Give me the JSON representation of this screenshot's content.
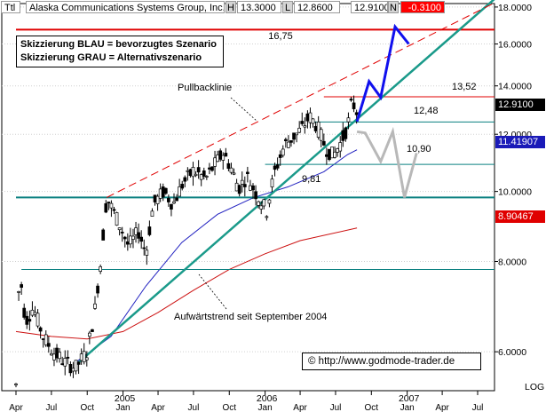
{
  "header": {
    "prefix": "Ttl",
    "title": "Alaska Communications Systems Group, Inc.",
    "high_label": "H",
    "high_value": "13.3000",
    "low_label": "L",
    "low_value": "12.8600",
    "close_value": "12.9100",
    "close_label": "N",
    "change_value": "-0.3100"
  },
  "legend": {
    "line1": "Skizzierung BLAU = bevorzugtes Szenario",
    "line2": "Skizzierung GRAU = Alternativszenario"
  },
  "annotations": {
    "level_top": "16,75",
    "level_1352": "13,52",
    "level_1248": "12,48",
    "level_1090": "10,90",
    "level_981": "9,81",
    "pullback": "Pullbacklinie",
    "uptrend": "Aufwärtstrend seit September 2004"
  },
  "price_tags": {
    "current": "12.9100",
    "ma_short": "11.41907",
    "ma_long": "8.90467"
  },
  "copyright": "© http://www.godmode-trader.de",
  "colors": {
    "red_level": "#e00000",
    "teal_level": "#0a8080",
    "trend_green": "#1a9a8a",
    "blue_sketch": "#1010ee",
    "grey_sketch": "#b8b8b8",
    "ma_blue": "#2020c0",
    "ma_red": "#cc1010",
    "neg_change_bg": "#ff0000",
    "price_tag_black": "#000000",
    "price_tag_blue": "#1a1ab8",
    "price_tag_red": "#e00000"
  },
  "chart_data": {
    "type": "candlestick",
    "y_scale": "log",
    "ylim": [
      5.3,
      18.0
    ],
    "x_range": [
      "2004-04-01",
      "2007-08-15"
    ],
    "y_tick_labels": [
      "18.0000",
      "16.0000",
      "14.0000",
      "12.0000",
      "10.0000",
      "8.0000",
      "6.0000"
    ],
    "y_axis_caption": "LOG",
    "x_ticks": [
      {
        "date": "2004-04-01",
        "label": "Apr"
      },
      {
        "date": "2004-07-01",
        "label": "Jul"
      },
      {
        "date": "2004-10-01",
        "label": "Oct"
      },
      {
        "date": "2005-01-01",
        "label": "Jan",
        "year": "2005"
      },
      {
        "date": "2005-04-01",
        "label": "Apr"
      },
      {
        "date": "2005-07-01",
        "label": "Jul"
      },
      {
        "date": "2005-10-01",
        "label": "Oct"
      },
      {
        "date": "2006-01-01",
        "label": "Jan",
        "year": "2006"
      },
      {
        "date": "2006-04-01",
        "label": "Apr"
      },
      {
        "date": "2006-07-01",
        "label": "Jul"
      },
      {
        "date": "2006-10-01",
        "label": "Oct"
      },
      {
        "date": "2007-01-01",
        "label": "Jan",
        "year": "2007"
      },
      {
        "date": "2007-04-01",
        "label": "Apr"
      },
      {
        "date": "2007-07-01",
        "label": "Jul"
      }
    ],
    "horizontal_levels": [
      {
        "value": 16.75,
        "label": "16,75",
        "color": "red",
        "x_start": "2004-04-01"
      },
      {
        "value": 13.52,
        "label": "13,52",
        "color": "red",
        "x_start": "2006-06-01"
      },
      {
        "value": 12.48,
        "label": "12,48",
        "color": "teal",
        "x_start": "2006-05-01"
      },
      {
        "value": 10.9,
        "label": "10,90",
        "color": "teal",
        "x_start": "2006-01-01"
      },
      {
        "value": 9.81,
        "label": "9,81",
        "color": "teal",
        "x_start": "2004-04-01"
      },
      {
        "value": 7.8,
        "label": "",
        "color": "teal",
        "x_start": "2004-04-15"
      }
    ],
    "trendlines": [
      {
        "name": "Aufwärtstrend",
        "style": "solid",
        "color": "trend_green",
        "points": [
          [
            "2004-09-01",
            5.75
          ],
          [
            "2007-08-15",
            18.5
          ]
        ]
      },
      {
        "name": "Pullbacklinie",
        "style": "dashed",
        "color": "red",
        "points": [
          [
            "2004-11-20",
            9.81
          ],
          [
            "2007-08-10",
            18.2
          ]
        ]
      }
    ],
    "moving_averages": [
      {
        "name": "MA short",
        "color": "ma_blue",
        "points": [
          [
            "2004-09-01",
            5.8
          ],
          [
            "2004-12-01",
            6.3
          ],
          [
            "2005-03-01",
            7.4
          ],
          [
            "2005-06-01",
            8.5
          ],
          [
            "2005-09-01",
            9.3
          ],
          [
            "2005-12-01",
            9.8
          ],
          [
            "2006-03-01",
            10.15
          ],
          [
            "2006-06-01",
            10.65
          ],
          [
            "2006-08-01",
            11.25
          ],
          [
            "2006-08-25",
            11.42
          ]
        ]
      },
      {
        "name": "MA long",
        "color": "ma_red",
        "points": [
          [
            "2004-04-01",
            6.4
          ],
          [
            "2004-07-01",
            6.3
          ],
          [
            "2004-10-01",
            6.25
          ],
          [
            "2005-01-01",
            6.4
          ],
          [
            "2005-04-01",
            6.8
          ],
          [
            "2005-07-01",
            7.3
          ],
          [
            "2005-10-01",
            7.8
          ],
          [
            "2006-01-01",
            8.2
          ],
          [
            "2006-04-01",
            8.55
          ],
          [
            "2006-08-25",
            8.9
          ]
        ]
      }
    ],
    "scenarios": [
      {
        "name": "BLAU",
        "color": "blue_sketch",
        "points": [
          [
            "2006-08-25",
            12.5
          ],
          [
            "2006-09-25",
            14.2
          ],
          [
            "2006-10-25",
            13.5
          ],
          [
            "2006-12-01",
            16.9
          ],
          [
            "2007-01-05",
            16.0
          ]
        ]
      },
      {
        "name": "GRAU",
        "color": "grey_sketch",
        "points": [
          [
            "2006-08-25",
            12.1
          ],
          [
            "2006-09-15",
            12.05
          ],
          [
            "2006-10-25",
            11.0
          ],
          [
            "2006-11-25",
            12.1
          ],
          [
            "2006-12-25",
            9.81
          ],
          [
            "2007-01-25",
            11.3
          ]
        ]
      }
    ],
    "price_path": [
      [
        "2004-04-01",
        5.4
      ],
      [
        "2004-04-10",
        7.8
      ],
      [
        "2004-04-25",
        6.6
      ],
      [
        "2004-05-15",
        6.9
      ],
      [
        "2004-06-10",
        6.3
      ],
      [
        "2004-07-05",
        6.0
      ],
      [
        "2004-08-05",
        5.8
      ],
      [
        "2004-09-01",
        5.7
      ],
      [
        "2004-10-01",
        6.0
      ],
      [
        "2004-10-20",
        6.8
      ],
      [
        "2004-11-05",
        8.0
      ],
      [
        "2004-11-20",
        9.8
      ],
      [
        "2004-12-15",
        9.2
      ],
      [
        "2005-01-15",
        8.4
      ],
      [
        "2005-02-10",
        8.8
      ],
      [
        "2005-03-01",
        8.2
      ],
      [
        "2005-03-20",
        9.6
      ],
      [
        "2005-04-15",
        10.0
      ],
      [
        "2005-05-10",
        9.6
      ],
      [
        "2005-06-01",
        10.2
      ],
      [
        "2005-07-01",
        10.7
      ],
      [
        "2005-08-01",
        10.4
      ],
      [
        "2005-08-25",
        10.9
      ],
      [
        "2005-09-15",
        11.3
      ],
      [
        "2005-10-05",
        10.8
      ],
      [
        "2005-10-25",
        10.1
      ],
      [
        "2005-11-15",
        10.5
      ],
      [
        "2005-12-10",
        9.9
      ],
      [
        "2006-01-05",
        9.4
      ],
      [
        "2006-01-25",
        10.6
      ],
      [
        "2006-02-20",
        11.6
      ],
      [
        "2006-03-15",
        11.9
      ],
      [
        "2006-04-05",
        12.2
      ],
      [
        "2006-04-25",
        12.7
      ],
      [
        "2006-05-15",
        12.3
      ],
      [
        "2006-06-05",
        11.5
      ],
      [
        "2006-06-25",
        11.2
      ],
      [
        "2006-07-15",
        11.7
      ],
      [
        "2006-08-01",
        12.3
      ],
      [
        "2006-08-12",
        13.3
      ],
      [
        "2006-08-25",
        12.9
      ]
    ]
  }
}
